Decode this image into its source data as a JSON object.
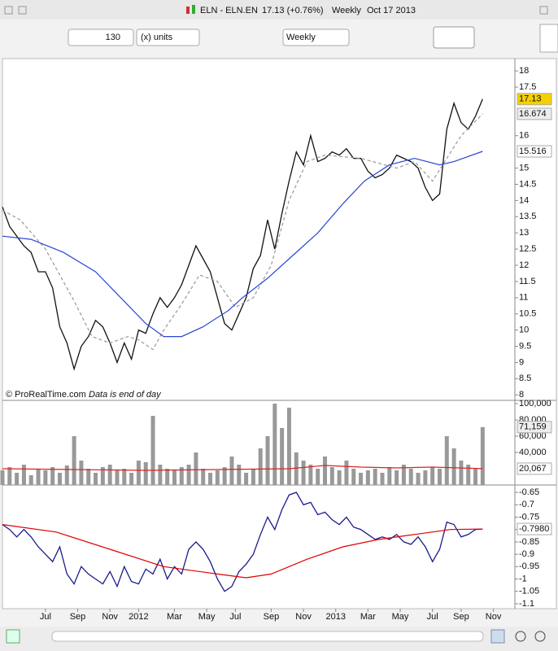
{
  "header": {
    "symbol": "ELN - ELN.EN",
    "quote": "17.13 (+0.76%)",
    "period": "Weekly",
    "date": "Oct 17 2013"
  },
  "toolbar": {
    "units_count": "130",
    "units": "(x) units",
    "timeframe": "Weekly"
  },
  "footer": {
    "copyright": "© ProRealTime.com",
    "note": "Data is end of day"
  },
  "chart_data": [
    {
      "type": "line",
      "ylim": [
        7.83,
        18.38
      ],
      "yticks": [
        18,
        17.5,
        16,
        15,
        14.5,
        14,
        13.5,
        13,
        12.5,
        12,
        11.5,
        11,
        10.5,
        10,
        9.5,
        9,
        8.5,
        8
      ],
      "series": [
        {
          "name": "Close",
          "color": "#111111",
          "x": [
            0,
            2,
            4,
            6,
            8,
            10,
            12,
            14,
            16,
            18,
            20,
            22,
            24,
            26,
            28,
            30,
            32,
            34,
            36,
            38,
            40,
            42,
            44,
            46,
            48,
            50,
            52,
            54,
            56,
            58,
            60,
            62,
            64,
            66,
            68,
            70,
            72,
            74,
            76,
            78,
            80,
            82,
            84,
            86,
            88,
            90,
            92,
            94,
            96,
            98,
            100,
            102,
            104,
            106,
            108,
            110,
            112,
            114,
            116,
            118,
            120,
            122,
            124,
            126,
            128,
            130,
            132,
            134
          ],
          "values": [
            13.8,
            13.2,
            12.9,
            12.6,
            12.4,
            11.8,
            11.8,
            11.3,
            10.1,
            9.6,
            8.8,
            9.5,
            9.8,
            10.3,
            10.1,
            9.6,
            9.0,
            9.6,
            9.1,
            10.0,
            9.9,
            10.5,
            11.0,
            10.7,
            11.0,
            11.4,
            12.0,
            12.6,
            12.2,
            11.8,
            11.0,
            10.2,
            10.0,
            10.5,
            11.0,
            11.9,
            12.3,
            13.4,
            12.5,
            13.6,
            14.6,
            15.5,
            15.1,
            16.0,
            15.2,
            15.3,
            15.5,
            15.4,
            15.6,
            15.3,
            15.3,
            14.9,
            14.7,
            14.8,
            15.0,
            15.4,
            15.3,
            15.2,
            15.0,
            14.4,
            14.0,
            14.2,
            16.2,
            17.0,
            16.4,
            16.2,
            16.6,
            17.13
          ]
        },
        {
          "color": "#999999",
          "dashed": true,
          "x": [
            0,
            5,
            12,
            20,
            25,
            30,
            35,
            38,
            42,
            45,
            50,
            55,
            60,
            65,
            70,
            75,
            80,
            85,
            90,
            100,
            110,
            115,
            120,
            124,
            128,
            134
          ],
          "values": [
            13.7,
            13.4,
            12.5,
            10.9,
            9.8,
            9.6,
            9.8,
            9.7,
            9.4,
            10.0,
            10.8,
            11.7,
            11.5,
            10.7,
            11.0,
            12.0,
            14.0,
            15.2,
            15.4,
            15.3,
            15.0,
            15.2,
            14.6,
            15.3,
            16.0,
            16.674
          ]
        },
        {
          "color": "#2a45d6",
          "x": [
            0,
            8,
            17,
            26,
            33,
            40,
            45,
            50,
            56,
            63,
            67,
            74,
            81,
            88,
            95,
            101,
            108,
            115,
            122,
            126,
            134
          ],
          "values": [
            12.9,
            12.8,
            12.4,
            11.8,
            11.0,
            10.2,
            9.8,
            9.8,
            10.1,
            10.6,
            11.0,
            11.6,
            12.3,
            13.0,
            13.9,
            14.6,
            15.1,
            15.3,
            15.1,
            15.2,
            15.516
          ]
        }
      ],
      "last_values": [
        {
          "value": 17.13,
          "color": "#f5d000"
        },
        {
          "value": 16.674,
          "color": "#eeeeee"
        },
        {
          "value": 15.516,
          "color": "#ffffff"
        }
      ]
    },
    {
      "type": "bar",
      "ylim": [
        0,
        104000
      ],
      "yticks": [
        {
          "value": 100000,
          "label": "100,000"
        },
        {
          "value": 80000,
          "label": "80,000"
        },
        {
          "value": 60000,
          "label": "60,000"
        },
        {
          "value": 40000,
          "label": "40,000"
        }
      ],
      "series": [
        {
          "color": "#999999",
          "x": [
            0,
            2,
            4,
            6,
            8,
            10,
            12,
            14,
            16,
            18,
            20,
            22,
            24,
            26,
            28,
            30,
            32,
            34,
            36,
            38,
            40,
            42,
            44,
            46,
            48,
            50,
            52,
            54,
            56,
            58,
            60,
            62,
            64,
            66,
            68,
            70,
            72,
            74,
            76,
            78,
            80,
            82,
            84,
            86,
            88,
            90,
            92,
            94,
            96,
            98,
            100,
            102,
            104,
            106,
            108,
            110,
            112,
            114,
            116,
            118,
            120,
            122,
            124,
            126,
            128,
            130,
            132,
            134
          ],
          "values": [
            18000,
            22000,
            15000,
            25000,
            12000,
            20000,
            18000,
            22000,
            15000,
            24000,
            60000,
            30000,
            20000,
            15000,
            22000,
            25000,
            18000,
            20000,
            15000,
            30000,
            28000,
            85000,
            25000,
            20000,
            18000,
            22000,
            25000,
            40000,
            20000,
            15000,
            18000,
            22000,
            35000,
            25000,
            15000,
            20000,
            45000,
            60000,
            100000,
            70000,
            95000,
            40000,
            30000,
            25000,
            20000,
            35000,
            22000,
            18000,
            30000,
            20000,
            15000,
            18000,
            20000,
            15000,
            22000,
            18000,
            25000,
            20000,
            15000,
            18000,
            22000,
            20000,
            60000,
            45000,
            30000,
            25000,
            20000,
            71159
          ]
        },
        {
          "color": "#dd2222",
          "line": true,
          "x": [
            0,
            20,
            40,
            60,
            80,
            90,
            100,
            110,
            120,
            134
          ],
          "values": [
            20000,
            19000,
            18000,
            19000,
            20000,
            24000,
            22000,
            21000,
            22000,
            20067
          ]
        }
      ],
      "last_values": [
        {
          "value": 71159,
          "label": "71,159",
          "color": "#eeeeee"
        },
        {
          "value": 20067,
          "label": "20,067",
          "color": "#ffffff"
        }
      ]
    },
    {
      "type": "line",
      "ylim": [
        -1.12,
        -0.62
      ],
      "yticks": [
        -0.65,
        -0.7,
        -0.75,
        -0.8,
        -0.85,
        -0.9,
        -0.95,
        -1,
        -1.05,
        -1.1
      ],
      "xlim": [
        0,
        143
      ],
      "xticks": [
        {
          "value": 12,
          "label": "Jul"
        },
        {
          "value": 21,
          "label": "Sep"
        },
        {
          "value": 30,
          "label": "Nov"
        },
        {
          "value": 38,
          "label": "2012"
        },
        {
          "value": 48,
          "label": "Mar"
        },
        {
          "value": 57,
          "label": "May"
        },
        {
          "value": 65,
          "label": "Jul"
        },
        {
          "value": 75,
          "label": "Sep"
        },
        {
          "value": 84,
          "label": "Nov"
        },
        {
          "value": 93,
          "label": "2013"
        },
        {
          "value": 102,
          "label": "Mar"
        },
        {
          "value": 111,
          "label": "May"
        },
        {
          "value": 120,
          "label": "Jul"
        },
        {
          "value": 128,
          "label": "Sep"
        },
        {
          "value": 137,
          "label": "Nov"
        }
      ],
      "series": [
        {
          "color": "#1a1a8c",
          "x": [
            0,
            2,
            4,
            6,
            8,
            10,
            12,
            14,
            16,
            18,
            20,
            22,
            24,
            26,
            28,
            30,
            32,
            34,
            36,
            38,
            40,
            42,
            44,
            46,
            48,
            50,
            52,
            54,
            56,
            58,
            60,
            62,
            64,
            66,
            68,
            70,
            72,
            74,
            76,
            78,
            80,
            82,
            84,
            86,
            88,
            90,
            92,
            94,
            96,
            98,
            100,
            102,
            104,
            106,
            108,
            110,
            112,
            114,
            116,
            118,
            120,
            122,
            124,
            126,
            128,
            130,
            132,
            134
          ],
          "values": [
            -0.78,
            -0.8,
            -0.83,
            -0.8,
            -0.83,
            -0.87,
            -0.9,
            -0.93,
            -0.87,
            -0.98,
            -1.02,
            -0.95,
            -0.98,
            -1.0,
            -1.02,
            -0.97,
            -1.03,
            -0.95,
            -1.01,
            -1.02,
            -0.96,
            -0.98,
            -0.92,
            -1.0,
            -0.95,
            -0.98,
            -0.88,
            -0.85,
            -0.88,
            -0.93,
            -1.0,
            -1.05,
            -1.03,
            -0.97,
            -0.94,
            -0.9,
            -0.82,
            -0.75,
            -0.8,
            -0.72,
            -0.66,
            -0.65,
            -0.7,
            -0.69,
            -0.74,
            -0.73,
            -0.76,
            -0.78,
            -0.75,
            -0.79,
            -0.8,
            -0.82,
            -0.84,
            -0.83,
            -0.84,
            -0.82,
            -0.85,
            -0.86,
            -0.83,
            -0.87,
            -0.93,
            -0.88,
            -0.77,
            -0.78,
            -0.83,
            -0.82,
            -0.8,
            -0.798
          ]
        },
        {
          "color": "#e00000",
          "x": [
            0,
            15,
            30,
            45,
            60,
            68,
            75,
            85,
            95,
            105,
            115,
            125,
            134
          ],
          "values": [
            -0.78,
            -0.81,
            -0.88,
            -0.95,
            -0.98,
            -0.995,
            -0.98,
            -0.92,
            -0.87,
            -0.84,
            -0.82,
            -0.8,
            -0.798
          ]
        }
      ],
      "last_values": [
        {
          "value": -0.798,
          "label": "-0.7980",
          "color": "#ffffff"
        }
      ]
    }
  ]
}
